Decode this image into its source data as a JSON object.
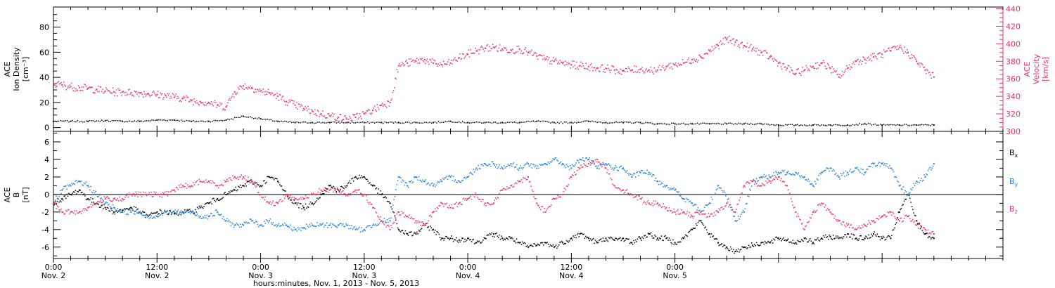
{
  "colors": {
    "density": "#000000",
    "velocity": "#f0306a",
    "bx": "#000000",
    "by": "#1e7fe0",
    "bz": "#f0306a",
    "axis": "#000000"
  },
  "chart_data": [
    {
      "type": "scatter",
      "panel": "top",
      "left_axis": {
        "label_lines": [
          "ACE",
          "Ion Density",
          "[cm⁻³]"
        ],
        "ylim": [
          -3,
          96
        ],
        "ticks": [
          0,
          20,
          40,
          60,
          80
        ],
        "tick_labels": [
          "0",
          "20",
          "40",
          "60",
          "80"
        ]
      },
      "right_axis": {
        "label_lines": [
          "ACE",
          "Velocity",
          "[km/s]"
        ],
        "ylim": [
          300,
          442
        ],
        "ticks": [
          300,
          320,
          340,
          360,
          380,
          400,
          420,
          440
        ],
        "tick_labels": [
          "300",
          "320",
          "340",
          "360",
          "380",
          "400",
          "420",
          "440"
        ]
      },
      "series": [
        {
          "key": "density",
          "axis": "left",
          "x": [
            0,
            2,
            4,
            6,
            8,
            10,
            12,
            14,
            16,
            18,
            20,
            22,
            24,
            26,
            28,
            30,
            32,
            34,
            36,
            38,
            40,
            42,
            44,
            46,
            48,
            50,
            52,
            54,
            56,
            58,
            60,
            62,
            64,
            66,
            68,
            70,
            72,
            74,
            76,
            78,
            80,
            82,
            84,
            86,
            88,
            90,
            92,
            94,
            96,
            98,
            100,
            102
          ],
          "values": [
            5,
            5,
            5,
            5.5,
            5,
            5,
            6,
            6,
            5,
            5,
            6,
            9,
            7,
            5,
            4,
            4,
            4,
            4,
            4,
            4,
            4,
            4,
            4,
            5,
            4,
            4,
            4,
            4,
            5,
            4,
            4,
            5,
            4,
            4,
            4,
            3,
            3,
            3,
            3,
            3,
            3,
            3,
            2,
            2,
            2,
            2,
            2,
            3,
            2,
            2,
            2,
            2
          ]
        },
        {
          "key": "velocity",
          "axis": "right",
          "x": [
            0,
            1,
            2,
            3,
            4,
            5,
            6,
            7,
            8,
            9,
            10,
            11,
            12,
            13,
            14,
            15,
            16,
            17,
            18,
            19,
            20,
            21,
            22,
            23,
            24,
            25,
            26,
            27,
            28,
            29,
            30,
            31,
            32,
            33,
            34,
            35,
            36,
            37,
            38,
            39,
            40,
            41,
            42,
            43,
            44,
            45,
            46,
            47,
            48,
            49,
            50,
            51,
            52,
            53,
            54,
            55,
            56,
            57,
            58,
            59,
            60,
            61,
            62,
            63,
            64,
            65,
            66,
            67,
            68,
            69,
            70,
            71,
            72,
            73,
            74,
            75,
            76,
            77,
            78,
            79,
            80,
            81,
            82,
            83,
            84,
            85,
            86,
            87,
            88,
            89,
            90,
            91,
            92,
            93,
            94,
            95,
            96,
            97,
            98,
            99,
            100,
            101,
            102
          ],
          "values": [
            354,
            353,
            351,
            350,
            349,
            348,
            346,
            345,
            345,
            344,
            344,
            343,
            342,
            341,
            339,
            338,
            335,
            334,
            333,
            330,
            328,
            345,
            352,
            350,
            346,
            344,
            340,
            334,
            330,
            326,
            323,
            320,
            318,
            316,
            314,
            316,
            320,
            324,
            330,
            333,
            375,
            378,
            380,
            382,
            378,
            376,
            378,
            384,
            388,
            392,
            395,
            396,
            394,
            393,
            394,
            390,
            386,
            382,
            380,
            378,
            376,
            375,
            374,
            372,
            372,
            370,
            369,
            370,
            371,
            370,
            370,
            374,
            376,
            378,
            382,
            385,
            392,
            398,
            405,
            402,
            398,
            394,
            390,
            385,
            378,
            372,
            366,
            370,
            374,
            378,
            372,
            362,
            372,
            380,
            382,
            385,
            388,
            392,
            396,
            390,
            380,
            370,
            362
          ]
        }
      ]
    },
    {
      "type": "scatter",
      "panel": "bottom",
      "left_axis": {
        "label_lines": [
          "ACE",
          "B",
          "[nT]"
        ],
        "ylim": [
          -7.3,
          7.2
        ],
        "ticks": [
          -6,
          -4,
          -2,
          0,
          2,
          4,
          6
        ],
        "tick_labels": [
          "-6",
          "-4",
          "-2",
          "0",
          "2",
          "4",
          "6"
        ]
      },
      "legend": [
        {
          "key": "bx",
          "label": "B",
          "sub": "x"
        },
        {
          "key": "by",
          "label": "B",
          "sub": "y"
        },
        {
          "key": "bz",
          "label": "B",
          "sub": "z"
        }
      ],
      "series": [
        {
          "key": "bx",
          "x": [
            0,
            1,
            2,
            3,
            4,
            5,
            6,
            7,
            8,
            9,
            10,
            11,
            12,
            13,
            14,
            15,
            16,
            17,
            18,
            19,
            20,
            21,
            22,
            23,
            24,
            25,
            26,
            27,
            28,
            29,
            30,
            31,
            32,
            33,
            34,
            35,
            36,
            37,
            38,
            39,
            40,
            41,
            42,
            43,
            44,
            45,
            46,
            47,
            48,
            49,
            50,
            51,
            52,
            53,
            54,
            55,
            56,
            57,
            58,
            59,
            60,
            61,
            62,
            63,
            64,
            65,
            66,
            67,
            68,
            69,
            70,
            71,
            72,
            73,
            74,
            75,
            76,
            77,
            78,
            79,
            80,
            81,
            82,
            83,
            84,
            85,
            86,
            87,
            88,
            89,
            90,
            91,
            92,
            93,
            94,
            95,
            96,
            97,
            98,
            99,
            100,
            101,
            102
          ],
          "values": [
            -1,
            -0.5,
            0,
            0.5,
            -0.5,
            -1,
            -1.5,
            -2,
            -1.8,
            -1.5,
            -2,
            -2.5,
            -2,
            -2,
            -2.2,
            -2,
            -2,
            -1.5,
            -1,
            -0.5,
            0,
            0.5,
            1,
            1.5,
            1,
            2,
            1.5,
            0,
            -1,
            -1.5,
            -1,
            0,
            1,
            0.5,
            1,
            2,
            2,
            1,
            0,
            -1,
            -4,
            -4.5,
            -4.5,
            -3.5,
            -4,
            -5,
            -5,
            -5.2,
            -5,
            -5.5,
            -5,
            -4.5,
            -5,
            -5,
            -5.5,
            -6,
            -5.8,
            -5.5,
            -6,
            -5.5,
            -5,
            -4.5,
            -5,
            -5.5,
            -5,
            -5.2,
            -5,
            -5.5,
            -5,
            -4.5,
            -5,
            -5,
            -5.5,
            -5,
            -4,
            -3,
            -4.5,
            -5.5,
            -6,
            -6.5,
            -6,
            -5.8,
            -5.5,
            -5.5,
            -5,
            -5.2,
            -5.5,
            -5,
            -5.5,
            -5,
            -4.8,
            -5,
            -4.5,
            -5,
            -5,
            -4.5,
            -5,
            -5,
            -2,
            0,
            -3,
            -4.5,
            -5
          ]
        },
        {
          "key": "by",
          "x": [
            0,
            1,
            2,
            3,
            4,
            5,
            6,
            7,
            8,
            9,
            10,
            11,
            12,
            13,
            14,
            15,
            16,
            17,
            18,
            19,
            20,
            21,
            22,
            23,
            24,
            25,
            26,
            27,
            28,
            29,
            30,
            31,
            32,
            33,
            34,
            35,
            36,
            37,
            38,
            39,
            40,
            41,
            42,
            43,
            44,
            45,
            46,
            47,
            48,
            49,
            50,
            51,
            52,
            53,
            54,
            55,
            56,
            57,
            58,
            59,
            60,
            61,
            62,
            63,
            64,
            65,
            66,
            67,
            68,
            69,
            70,
            71,
            72,
            73,
            74,
            75,
            76,
            77,
            78,
            79,
            80,
            81,
            82,
            83,
            84,
            85,
            86,
            87,
            88,
            89,
            90,
            91,
            92,
            93,
            94,
            95,
            96,
            97,
            98,
            99,
            100,
            101,
            102
          ],
          "values": [
            -1,
            0.5,
            1,
            1.5,
            1,
            0,
            -1,
            -1.5,
            -2,
            -2,
            -2,
            -2.5,
            -2.5,
            -2,
            -2,
            -2,
            -2,
            -2.5,
            -2.5,
            -2,
            -3,
            -3.5,
            -3.5,
            -3,
            -3.5,
            -3,
            -3.5,
            -3.5,
            -4,
            -3.8,
            -3.5,
            -3.5,
            -3.5,
            -3.5,
            -3.5,
            -4,
            -4,
            -3.5,
            -3,
            -3,
            2,
            1,
            2,
            1.5,
            1,
            1.5,
            2,
            1.5,
            2,
            3,
            3.5,
            3.5,
            3,
            3.5,
            3,
            3.5,
            3,
            3.5,
            4,
            3.5,
            3,
            4,
            4,
            3,
            3.5,
            3,
            3,
            2,
            2.5,
            2.5,
            1.5,
            1,
            0.5,
            -0.5,
            -1,
            -2,
            -1,
            1,
            0,
            -3,
            -2,
            1.5,
            2,
            2,
            2.5,
            2.5,
            2.5,
            2,
            1,
            2.5,
            3,
            2,
            2.5,
            3,
            2.5,
            3.5,
            3.5,
            3,
            1,
            0,
            1.5,
            2,
            3.5
          ]
        },
        {
          "key": "bz",
          "x": [
            0,
            1,
            2,
            3,
            4,
            5,
            6,
            7,
            8,
            9,
            10,
            11,
            12,
            13,
            14,
            15,
            16,
            17,
            18,
            19,
            20,
            21,
            22,
            23,
            24,
            25,
            26,
            27,
            28,
            29,
            30,
            31,
            32,
            33,
            34,
            35,
            36,
            37,
            38,
            39,
            40,
            41,
            42,
            43,
            44,
            45,
            46,
            47,
            48,
            49,
            50,
            51,
            52,
            53,
            54,
            55,
            56,
            57,
            58,
            59,
            60,
            61,
            62,
            63,
            64,
            65,
            66,
            67,
            68,
            69,
            70,
            71,
            72,
            73,
            74,
            75,
            76,
            77,
            78,
            79,
            80,
            81,
            82,
            83,
            84,
            85,
            86,
            87,
            88,
            89,
            90,
            91,
            92,
            93,
            94,
            95,
            96,
            97,
            98,
            99,
            100,
            101,
            102
          ],
          "values": [
            -1,
            -2,
            -2,
            -2,
            -1.5,
            -1,
            -0.5,
            -0.5,
            -0.5,
            0,
            0,
            0,
            0,
            0,
            0.5,
            1,
            1,
            1.5,
            1.5,
            1,
            1.5,
            2,
            2,
            1.5,
            0,
            -1,
            -1,
            0,
            -0.5,
            -0.5,
            0,
            0.5,
            0.5,
            0.5,
            0,
            0.5,
            0,
            -1.5,
            -3,
            -4,
            -2,
            -2.5,
            -3,
            -3.5,
            -2,
            -1,
            -1.5,
            -1,
            -0.5,
            0,
            -1,
            -1,
            0.5,
            1,
            1.5,
            2,
            -1,
            -2,
            -0.5,
            0,
            2,
            3,
            3.5,
            4,
            3,
            1,
            0.5,
            0,
            -0.5,
            -1,
            -1,
            -1.5,
            -2,
            -2,
            -2.5,
            -2,
            -2.5,
            -2,
            -1,
            -2,
            1,
            1.5,
            1,
            1.5,
            2,
            1,
            -2,
            -4,
            -2,
            -1,
            -2,
            -3,
            -3.5,
            -4,
            -3.5,
            -3,
            -2.5,
            -2,
            -3,
            -2.5,
            -3.5,
            -4,
            -4.5
          ]
        }
      ],
      "xaxis": {
        "xlim": [
          0,
          110
        ],
        "major_ticks": [
          0,
          12,
          24,
          36,
          48,
          60,
          72,
          84,
          96
        ],
        "tick_labels_top": [
          "0:00",
          "12:00",
          "0:00",
          "12:00",
          "0:00",
          "12:00",
          "0:00"
        ],
        "tick_labels_bottom": [
          "Nov. 2",
          "Nov. 2",
          "Nov. 3",
          "Nov. 3",
          "Nov. 4",
          "Nov. 4",
          "Nov. 5"
        ],
        "xlabel": "hours:minutes, Nov.  1, 2013 - Nov.  5, 2013"
      }
    }
  ]
}
